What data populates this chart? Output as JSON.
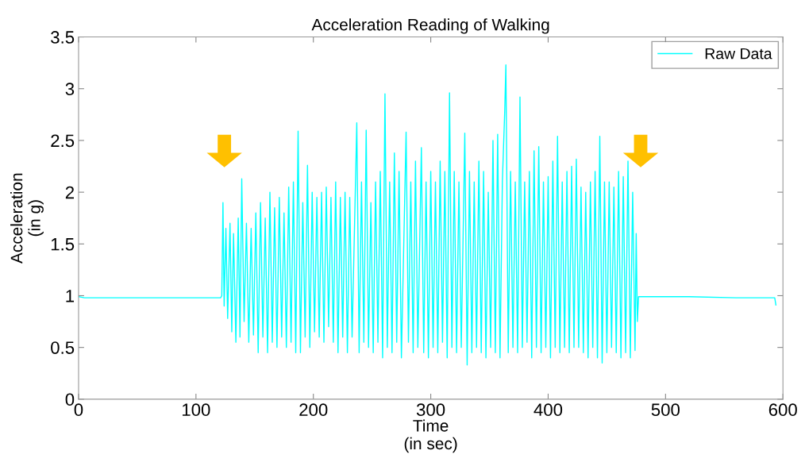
{
  "chart_data": {
    "type": "line",
    "title": "Acceleration Reading of Walking",
    "xlabel": "Time\n(in sec)",
    "ylabel": "Acceleration\n(in g)",
    "xlim": [
      0,
      600
    ],
    "xticks": [
      0,
      100,
      200,
      300,
      400,
      500,
      600
    ],
    "ylim": [
      0,
      3.5
    ],
    "yticks": [
      0,
      0.5,
      1,
      1.5,
      2,
      2.5,
      3,
      3.5
    ],
    "grid": false,
    "legend": "top right",
    "marker": "none",
    "line_style": "solid",
    "series": [
      {
        "name": "Raw Data",
        "color": "#00ffff",
        "x": [
          0,
          5,
          30,
          60,
          90,
          121,
          122,
          123,
          124,
          125.5,
          127,
          129,
          130.5,
          132,
          134,
          136,
          137.5,
          139,
          141,
          143,
          145,
          147,
          149,
          151,
          153,
          155,
          157,
          159,
          161,
          163,
          165,
          167,
          169,
          171,
          173,
          175,
          177,
          179,
          181,
          183,
          185,
          187,
          189,
          191,
          193,
          195,
          197,
          199,
          201,
          203,
          205,
          207,
          209,
          211,
          213,
          215,
          217,
          219,
          221,
          223,
          225,
          227,
          229,
          231,
          233,
          237,
          239,
          241,
          243,
          245,
          247,
          249,
          251,
          253,
          255,
          257,
          259,
          261,
          263,
          265,
          267,
          269,
          271,
          273,
          275,
          279,
          281,
          283,
          285,
          287,
          289,
          292,
          294,
          296,
          298,
          300,
          302,
          304,
          306,
          308,
          310,
          312,
          314,
          316,
          318,
          320,
          322,
          324,
          326,
          329,
          331,
          333,
          335,
          337,
          339,
          341,
          343,
          345,
          347,
          349,
          351,
          353,
          355,
          357,
          359,
          361,
          363,
          364,
          366,
          368,
          370,
          372,
          374,
          376,
          378,
          380,
          382,
          384,
          386,
          388,
          390,
          392,
          394,
          396,
          398,
          400,
          402,
          404,
          406,
          408,
          410,
          412,
          414,
          416,
          418,
          420,
          422,
          424,
          426,
          428,
          430,
          432,
          434,
          436,
          438,
          440,
          442,
          444,
          446,
          448,
          450,
          452,
          454,
          456,
          458,
          460,
          462,
          464,
          466,
          468,
          470,
          472,
          474,
          475,
          476,
          477,
          520,
          560,
          590,
          593,
          594
        ],
        "values": [
          0.99,
          0.98,
          0.98,
          0.98,
          0.98,
          0.98,
          1.0,
          1.9,
          0.9,
          1.65,
          0.78,
          1.7,
          0.65,
          1.6,
          0.55,
          1.75,
          0.6,
          2.13,
          0.75,
          1.7,
          0.55,
          1.65,
          0.62,
          1.8,
          0.45,
          1.9,
          0.6,
          1.75,
          0.45,
          2.0,
          0.55,
          1.85,
          0.5,
          1.95,
          0.6,
          1.8,
          0.5,
          2.05,
          0.55,
          2.1,
          0.45,
          2.59,
          0.45,
          1.9,
          0.6,
          2.26,
          0.5,
          2.0,
          0.65,
          1.95,
          0.6,
          2.0,
          0.55,
          2.05,
          0.7,
          1.95,
          0.55,
          2.1,
          0.45,
          1.95,
          0.6,
          2.0,
          0.45,
          1.95,
          0.6,
          2.67,
          0.45,
          2.1,
          0.55,
          2.6,
          0.5,
          1.9,
          0.45,
          2.1,
          0.55,
          2.2,
          0.4,
          2.95,
          0.5,
          2.1,
          0.45,
          2.38,
          0.55,
          2.2,
          0.4,
          2.58,
          0.55,
          2.1,
          0.45,
          2.3,
          0.5,
          2.43,
          0.45,
          2.1,
          0.4,
          2.2,
          0.5,
          2.1,
          0.45,
          2.3,
          0.55,
          2.2,
          0.4,
          2.96,
          0.5,
          2.2,
          0.45,
          2.1,
          0.5,
          2.57,
          0.33,
          2.2,
          0.45,
          2.1,
          0.5,
          2.3,
          0.45,
          2.2,
          0.4,
          2.0,
          0.5,
          2.5,
          0.45,
          2.56,
          0.4,
          2.1,
          2.78,
          3.23,
          0.45,
          2.2,
          0.5,
          2.1,
          0.45,
          2.92,
          0.5,
          2.1,
          0.55,
          2.2,
          0.4,
          2.4,
          0.5,
          2.44,
          0.45,
          2.1,
          0.5,
          2.15,
          0.4,
          2.3,
          0.5,
          2.54,
          0.45,
          2.1,
          0.5,
          2.2,
          0.45,
          2.25,
          0.5,
          2.32,
          0.5,
          2.05,
          0.45,
          2.0,
          0.4,
          2.1,
          0.5,
          2.2,
          0.4,
          2.54,
          0.35,
          2.1,
          0.45,
          2.1,
          0.5,
          2.05,
          0.45,
          2.2,
          0.4,
          2.15,
          0.45,
          2.3,
          0.4,
          2.0,
          0.47,
          1.6,
          0.75,
          0.99,
          0.99,
          0.98,
          0.98,
          0.98,
          0.91
        ]
      }
    ]
  }
}
